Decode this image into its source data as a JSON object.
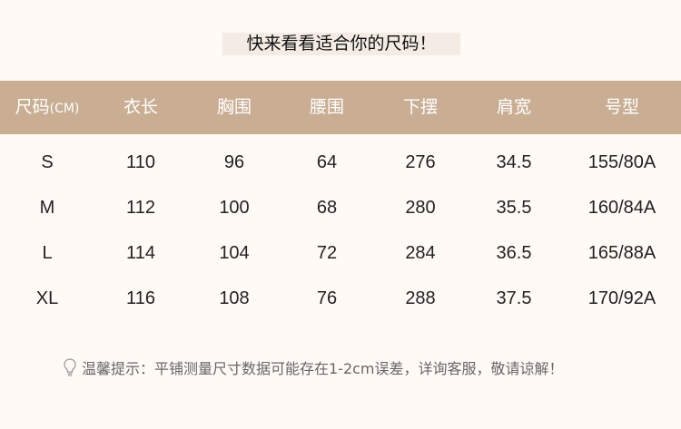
{
  "title": "快来看看适合你的尺码！",
  "headers": [
    "尺码",
    "衣长",
    "胸围",
    "腰围",
    "下摆",
    "肩宽",
    "号型"
  ],
  "unit": "(CM)",
  "rows": [
    [
      "S",
      "110",
      "96",
      "64",
      "276",
      "34.5",
      "155/80A"
    ],
    [
      "M",
      "112",
      "100",
      "68",
      "280",
      "35.5",
      "160/84A"
    ],
    [
      "L",
      "114",
      "104",
      "72",
      "284",
      "36.5",
      "165/88A"
    ],
    [
      "XL",
      "116",
      "108",
      "76",
      "288",
      "37.5",
      "170/92A"
    ]
  ],
  "note": "温馨提示：平铺测量尺寸数据可能存在1-2cm误差，详询客服，敬请谅解！",
  "colors": {
    "header_bg": "#c9ae94",
    "background": "#fffaf6",
    "title_bg": "#f3ebe4"
  }
}
